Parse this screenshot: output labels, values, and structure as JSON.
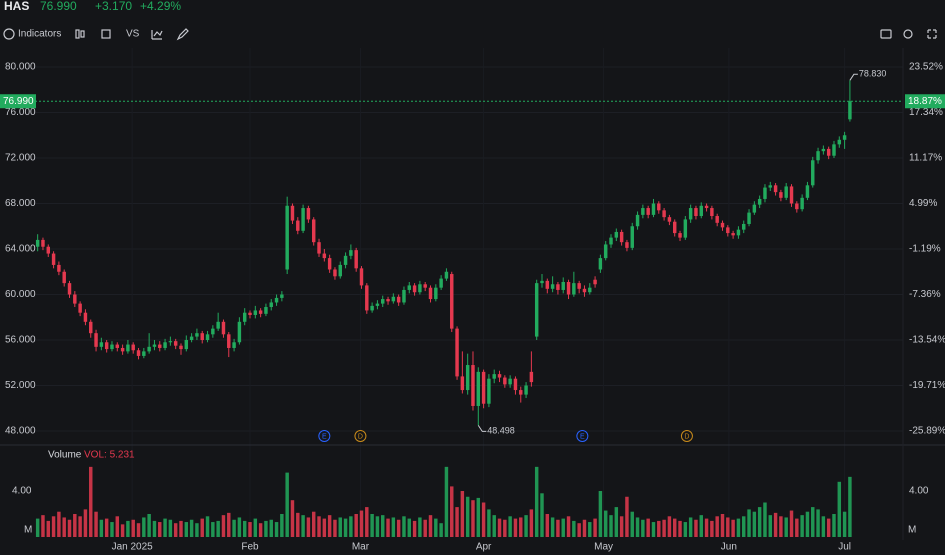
{
  "header": {
    "symbol": "HAS",
    "price": "76.990",
    "change": "+3.170",
    "change_pct": "+4.29%"
  },
  "toolbar": {
    "indicators": "Indicators",
    "compare": "VS"
  },
  "chart_data": {
    "type": "candlestick",
    "up_color": "#22ab5e",
    "down_color": "#e5394f",
    "grid": true,
    "ylim": [
      46.77,
      81.67
    ],
    "yticks": [
      {
        "value": 80,
        "label": "80.000"
      },
      {
        "value": 76,
        "label": "76.000"
      },
      {
        "value": 72,
        "label": "72.000"
      },
      {
        "value": 68,
        "label": "68.000"
      },
      {
        "value": 64,
        "label": "64.000"
      },
      {
        "value": 60,
        "label": "60.000"
      },
      {
        "value": 56,
        "label": "56.000"
      },
      {
        "value": 52,
        "label": "52.000"
      },
      {
        "value": 48,
        "label": "48.000"
      }
    ],
    "y2lim": [
      -27.79,
      26.1
    ],
    "y2ticks": [
      {
        "value": 23.52,
        "label": "23.52%"
      },
      {
        "value": 17.34,
        "label": "17.34%"
      },
      {
        "value": 11.17,
        "label": "11.17%"
      },
      {
        "value": 4.99,
        "label": "4.99%"
      },
      {
        "value": -1.19,
        "label": "-1.19%"
      },
      {
        "value": -7.36,
        "label": "-7.36%"
      },
      {
        "value": -13.54,
        "label": "-13.54%"
      },
      {
        "value": -19.71,
        "label": "-19.71%"
      },
      {
        "value": -25.89,
        "label": "-25.89%"
      }
    ],
    "xlim": [
      -0.5,
      163
    ],
    "xticks": [
      {
        "value": 17.8,
        "label": "Jan 2025"
      },
      {
        "value": 40,
        "label": "Feb"
      },
      {
        "value": 60.8,
        "label": "Mar"
      },
      {
        "value": 84,
        "label": "Apr"
      },
      {
        "value": 106.6,
        "label": "May"
      },
      {
        "value": 130.2,
        "label": "Jun"
      },
      {
        "value": 152,
        "label": "Jul"
      }
    ],
    "last": {
      "value": 76.99,
      "label": "76.990",
      "pct": 18.87,
      "pct_label": "18.87%"
    },
    "annotations": [
      {
        "kind": "high",
        "value": 78.83,
        "label": "78.830"
      },
      {
        "kind": "low",
        "value": 48.498,
        "label": "48.498"
      }
    ],
    "events": [
      {
        "x": 54,
        "label": "E",
        "color": "#2962ff"
      },
      {
        "x": 60.8,
        "label": "D",
        "color": "#c98b1b"
      },
      {
        "x": 102.6,
        "label": "E",
        "color": "#2962ff"
      },
      {
        "x": 122.3,
        "label": "D",
        "color": "#c98b1b"
      }
    ],
    "candles": [
      [
        64.2,
        65.3,
        63.8,
        64.8
      ],
      [
        64.8,
        65.0,
        63.9,
        64.2
      ],
      [
        64.2,
        64.4,
        63.3,
        63.6
      ],
      [
        63.6,
        63.8,
        62.3,
        62.6
      ],
      [
        62.6,
        62.9,
        61.7,
        62.0
      ],
      [
        62.0,
        62.2,
        60.7,
        61.0
      ],
      [
        61.0,
        61.2,
        59.7,
        60.0
      ],
      [
        60.0,
        60.3,
        58.9,
        59.2
      ],
      [
        59.2,
        59.4,
        58.1,
        58.4
      ],
      [
        58.4,
        58.7,
        57.3,
        57.6
      ],
      [
        57.6,
        57.8,
        56.2,
        56.6
      ],
      [
        56.6,
        56.9,
        55.0,
        55.4
      ],
      [
        55.4,
        56.2,
        55.1,
        55.8
      ],
      [
        55.8,
        56.0,
        54.9,
        55.2
      ],
      [
        55.2,
        55.9,
        55.0,
        55.6
      ],
      [
        55.6,
        55.8,
        55.0,
        55.3
      ],
      [
        55.3,
        55.6,
        54.7,
        55.0
      ],
      [
        55.0,
        56.0,
        54.8,
        55.6
      ],
      [
        55.6,
        55.8,
        54.8,
        55.1
      ],
      [
        55.1,
        55.3,
        54.3,
        54.6
      ],
      [
        54.6,
        55.3,
        54.4,
        55.0
      ],
      [
        55.0,
        56.6,
        54.8,
        55.4
      ],
      [
        55.4,
        56.0,
        55.1,
        55.6
      ],
      [
        55.6,
        55.9,
        55.0,
        55.3
      ],
      [
        55.3,
        56.1,
        55.1,
        55.8
      ],
      [
        55.8,
        56.3,
        55.5,
        55.9
      ],
      [
        55.9,
        56.1,
        55.2,
        55.5
      ],
      [
        55.5,
        55.7,
        54.7,
        55.2
      ],
      [
        55.2,
        56.4,
        55.0,
        56.0
      ],
      [
        56.0,
        56.6,
        55.8,
        56.3
      ],
      [
        56.3,
        57.0,
        56.0,
        56.6
      ],
      [
        56.6,
        56.8,
        55.7,
        56.0
      ],
      [
        56.0,
        56.8,
        55.8,
        56.5
      ],
      [
        56.5,
        57.3,
        56.2,
        57.0
      ],
      [
        57.0,
        58.4,
        56.8,
        57.6
      ],
      [
        57.6,
        57.8,
        56.2,
        56.5
      ],
      [
        56.5,
        56.7,
        54.5,
        55.3
      ],
      [
        55.3,
        56.1,
        55.0,
        55.8
      ],
      [
        55.8,
        58.0,
        55.6,
        57.6
      ],
      [
        57.6,
        58.8,
        57.3,
        58.4
      ],
      [
        58.4,
        58.6,
        57.9,
        58.2
      ],
      [
        58.2,
        59.0,
        57.9,
        58.6
      ],
      [
        58.6,
        58.8,
        58.0,
        58.3
      ],
      [
        58.3,
        59.2,
        58.1,
        58.9
      ],
      [
        58.9,
        59.6,
        58.6,
        59.3
      ],
      [
        59.3,
        60.0,
        59.0,
        59.7
      ],
      [
        59.7,
        60.3,
        59.4,
        60.0
      ],
      [
        62.2,
        68.6,
        61.8,
        67.8
      ],
      [
        67.8,
        68.0,
        66.2,
        66.5
      ],
      [
        66.5,
        66.8,
        65.3,
        65.6
      ],
      [
        65.6,
        67.9,
        65.4,
        67.6
      ],
      [
        67.6,
        67.8,
        66.3,
        66.6
      ],
      [
        66.6,
        66.8,
        64.3,
        64.6
      ],
      [
        64.6,
        64.9,
        63.3,
        63.6
      ],
      [
        63.6,
        64.0,
        62.9,
        63.2
      ],
      [
        63.2,
        63.5,
        61.9,
        62.2
      ],
      [
        62.2,
        62.4,
        61.3,
        61.6
      ],
      [
        61.6,
        62.9,
        61.4,
        62.6
      ],
      [
        62.6,
        63.7,
        62.3,
        63.4
      ],
      [
        63.4,
        64.4,
        63.1,
        63.9
      ],
      [
        63.9,
        64.1,
        62.0,
        62.3
      ],
      [
        62.3,
        62.5,
        60.5,
        60.8
      ],
      [
        60.8,
        61.0,
        58.3,
        58.6
      ],
      [
        58.6,
        59.3,
        58.4,
        59.0
      ],
      [
        59.0,
        59.5,
        58.7,
        59.2
      ],
      [
        59.2,
        59.9,
        58.9,
        59.6
      ],
      [
        59.6,
        59.8,
        59.1,
        59.4
      ],
      [
        59.4,
        60.1,
        59.2,
        59.8
      ],
      [
        59.8,
        60.0,
        59.0,
        59.3
      ],
      [
        59.3,
        60.7,
        59.1,
        60.4
      ],
      [
        60.4,
        61.1,
        60.1,
        60.8
      ],
      [
        60.8,
        61.0,
        59.9,
        60.2
      ],
      [
        60.2,
        61.2,
        60.0,
        60.9
      ],
      [
        60.9,
        61.1,
        60.3,
        60.6
      ],
      [
        60.6,
        60.8,
        59.3,
        59.6
      ],
      [
        59.6,
        60.9,
        59.4,
        60.6
      ],
      [
        60.6,
        61.7,
        60.4,
        61.4
      ],
      [
        61.4,
        62.3,
        61.2,
        62.0
      ],
      [
        61.8,
        62.0,
        56.7,
        57.0
      ],
      [
        57.0,
        57.2,
        52.5,
        52.8
      ],
      [
        52.8,
        55.0,
        51.3,
        51.6
      ],
      [
        51.6,
        54.8,
        51.2,
        53.8
      ],
      [
        53.8,
        55.0,
        49.8,
        50.2
      ],
      [
        50.2,
        53.6,
        48.498,
        53.2
      ],
      [
        53.2,
        53.4,
        50.0,
        50.4
      ],
      [
        50.4,
        53.0,
        50.1,
        52.6
      ],
      [
        52.6,
        53.4,
        52.2,
        53.0
      ],
      [
        53.0,
        53.3,
        52.3,
        52.7
      ],
      [
        52.7,
        52.9,
        51.8,
        52.1
      ],
      [
        52.1,
        52.9,
        51.8,
        52.6
      ],
      [
        52.6,
        52.8,
        51.2,
        51.6
      ],
      [
        51.6,
        51.9,
        50.5,
        51.2
      ],
      [
        51.2,
        52.3,
        50.9,
        52.0
      ],
      [
        53.2,
        55.0,
        51.9,
        52.3
      ],
      [
        56.3,
        61.3,
        56.0,
        61.0
      ],
      [
        61.0,
        61.8,
        60.6,
        61.2
      ],
      [
        61.2,
        61.4,
        60.1,
        60.5
      ],
      [
        60.5,
        61.6,
        60.2,
        60.9
      ],
      [
        60.9,
        61.1,
        60.0,
        60.4
      ],
      [
        60.4,
        61.5,
        60.1,
        61.1
      ],
      [
        61.1,
        61.3,
        59.6,
        60.0
      ],
      [
        60.0,
        62.0,
        59.8,
        61.0
      ],
      [
        61.0,
        61.2,
        60.1,
        60.5
      ],
      [
        60.5,
        60.8,
        59.8,
        60.2
      ],
      [
        60.2,
        61.0,
        60.0,
        60.6
      ],
      [
        61.3,
        61.6,
        60.6,
        60.9
      ],
      [
        62.2,
        63.5,
        61.9,
        63.2
      ],
      [
        63.2,
        64.7,
        63.0,
        64.4
      ],
      [
        64.4,
        65.3,
        64.1,
        65.0
      ],
      [
        65.0,
        65.8,
        64.7,
        65.5
      ],
      [
        65.5,
        65.7,
        64.3,
        64.6
      ],
      [
        64.6,
        64.8,
        63.8,
        64.1
      ],
      [
        64.1,
        66.3,
        63.9,
        66.0
      ],
      [
        66.0,
        67.3,
        65.7,
        67.0
      ],
      [
        67.0,
        67.9,
        66.7,
        67.6
      ],
      [
        67.6,
        67.8,
        66.7,
        67.0
      ],
      [
        67.0,
        68.4,
        66.8,
        68.0
      ],
      [
        68.0,
        68.2,
        67.1,
        67.4
      ],
      [
        67.4,
        67.6,
        66.5,
        66.8
      ],
      [
        66.8,
        67.0,
        66.1,
        66.4
      ],
      [
        66.4,
        66.6,
        65.1,
        65.4
      ],
      [
        65.4,
        65.6,
        64.7,
        65.0
      ],
      [
        65.0,
        66.9,
        64.8,
        66.6
      ],
      [
        66.6,
        67.9,
        66.3,
        67.6
      ],
      [
        67.6,
        67.8,
        66.6,
        66.9
      ],
      [
        66.9,
        68.1,
        66.7,
        67.8
      ],
      [
        67.8,
        68.0,
        67.3,
        67.6
      ],
      [
        67.6,
        67.8,
        66.6,
        66.9
      ],
      [
        66.9,
        67.1,
        66.0,
        66.3
      ],
      [
        66.3,
        66.5,
        65.6,
        65.9
      ],
      [
        65.9,
        66.1,
        65.1,
        65.4
      ],
      [
        65.4,
        65.6,
        64.9,
        65.2
      ],
      [
        65.2,
        66.0,
        64.9,
        65.7
      ],
      [
        65.7,
        66.5,
        65.4,
        66.2
      ],
      [
        66.2,
        67.5,
        66.0,
        67.2
      ],
      [
        67.2,
        68.2,
        67.0,
        67.9
      ],
      [
        67.9,
        68.7,
        67.6,
        68.4
      ],
      [
        68.4,
        69.7,
        68.1,
        69.4
      ],
      [
        69.4,
        69.9,
        69.1,
        69.6
      ],
      [
        69.6,
        69.8,
        68.7,
        69.0
      ],
      [
        69.0,
        69.2,
        68.2,
        68.5
      ],
      [
        68.5,
        69.8,
        68.3,
        69.5
      ],
      [
        69.5,
        69.7,
        67.7,
        68.0
      ],
      [
        68.0,
        68.2,
        67.2,
        67.5
      ],
      [
        67.5,
        68.8,
        67.3,
        68.5
      ],
      [
        68.5,
        69.9,
        68.3,
        69.6
      ],
      [
        69.6,
        72.1,
        69.4,
        71.8
      ],
      [
        71.8,
        72.9,
        71.5,
        72.6
      ],
      [
        72.6,
        73.1,
        72.3,
        72.8
      ],
      [
        72.8,
        73.0,
        71.9,
        72.2
      ],
      [
        72.2,
        73.5,
        72.0,
        73.2
      ],
      [
        73.2,
        73.9,
        72.9,
        73.6
      ],
      [
        73.6,
        74.3,
        72.8,
        74.0
      ],
      [
        75.4,
        78.83,
        75.2,
        76.99
      ]
    ],
    "volume": {
      "title": "Volume",
      "legend": "VOL: 5.231",
      "unit": "M",
      "ylim": [
        0,
        7.74
      ],
      "yticks": [
        {
          "value": 4,
          "label": "4.00"
        }
      ],
      "values": [
        1.6,
        1.9,
        1.4,
        1.8,
        2.2,
        1.7,
        1.5,
        2.0,
        1.8,
        2.4,
        6.1,
        2.2,
        1.5,
        1.6,
        1.3,
        1.8,
        1.1,
        1.4,
        1.5,
        1.2,
        1.7,
        2.0,
        1.4,
        1.3,
        1.6,
        1.5,
        1.2,
        1.4,
        1.3,
        1.5,
        1.2,
        1.6,
        1.8,
        1.3,
        1.4,
        1.9,
        2.1,
        1.5,
        1.7,
        1.4,
        1.3,
        1.6,
        1.2,
        1.4,
        1.5,
        1.3,
        2.0,
        5.6,
        3.2,
        2.1,
        1.9,
        1.7,
        2.2,
        1.8,
        1.6,
        1.9,
        1.5,
        1.7,
        1.6,
        1.8,
        2.0,
        2.3,
        2.6,
        2.0,
        1.8,
        1.9,
        1.6,
        1.7,
        1.5,
        1.8,
        1.6,
        1.4,
        1.7,
        1.5,
        1.9,
        1.6,
        1.2,
        6.1,
        4.4,
        2.6,
        4.0,
        3.5,
        3.2,
        3.4,
        3.0,
        2.4,
        1.9,
        1.6,
        1.5,
        1.8,
        1.6,
        1.7,
        1.9,
        2.4,
        6.1,
        3.8,
        2.0,
        1.7,
        1.5,
        1.6,
        1.8,
        1.4,
        1.2,
        1.5,
        1.3,
        1.6,
        4.0,
        2.3,
        1.9,
        2.6,
        1.8,
        3.5,
        2.2,
        1.7,
        1.5,
        1.6,
        1.3,
        1.4,
        1.5,
        1.8,
        1.6,
        1.4,
        1.3,
        1.7,
        1.5,
        1.9,
        1.6,
        1.4,
        1.8,
        2.0,
        1.7,
        1.5,
        1.6,
        1.8,
        2.4,
        2.2,
        2.6,
        3.0,
        1.9,
        2.1,
        1.8,
        1.7,
        2.3,
        1.6,
        1.9,
        2.2,
        2.6,
        2.4,
        1.8,
        1.6,
        2.0,
        4.8,
        2.2,
        5.231
      ]
    }
  }
}
